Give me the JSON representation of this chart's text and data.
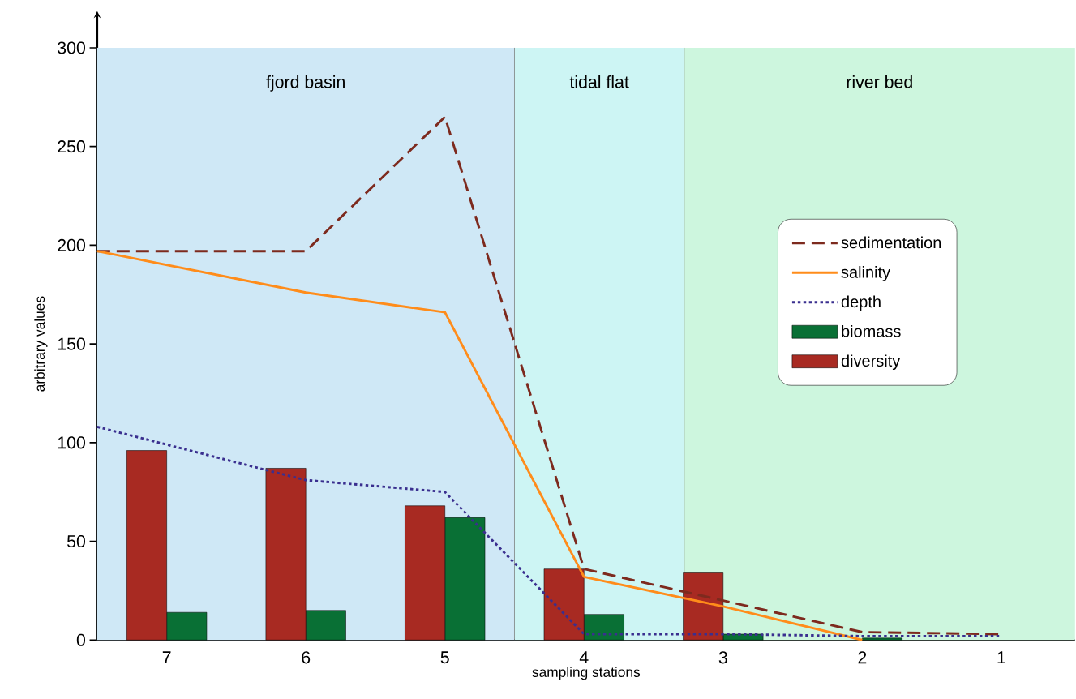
{
  "chart_data": {
    "type": "bar",
    "xlabel": "sampling stations",
    "ylabel": "arbitrary values",
    "x": [
      7,
      6,
      5,
      4,
      3,
      2
    ],
    "series": [
      {
        "name": "sedimentation",
        "type": "line",
        "line_style": "dashed",
        "color": "#7d2a1e",
        "x": [
          7.5,
          6,
          5,
          4,
          3,
          2,
          1
        ],
        "values": [
          197,
          197,
          265,
          36,
          20,
          4,
          3
        ]
      },
      {
        "name": "salinity",
        "type": "line",
        "line_style": "solid",
        "color": "#ff8c1a",
        "x": [
          7.5,
          6,
          5,
          4,
          3,
          2
        ],
        "values": [
          197,
          176,
          166,
          32,
          17,
          0
        ]
      },
      {
        "name": "depth",
        "type": "line",
        "line_style": "dotted",
        "color": "#3a2f8f",
        "x": [
          7.5,
          6,
          5,
          4,
          3,
          2,
          1
        ],
        "values": [
          108,
          81,
          75,
          3,
          3,
          2,
          2
        ]
      },
      {
        "name": "biomass",
        "color": "#097035",
        "values": [
          14,
          15,
          62,
          13,
          3,
          1
        ]
      },
      {
        "name": "diversity",
        "color": "#a82a22",
        "values": [
          96,
          87,
          68,
          36,
          34,
          null
        ]
      }
    ],
    "xlim": [
      7.5,
      0.47
    ],
    "xticks": [
      7,
      6,
      5,
      4,
      3,
      2,
      1
    ],
    "ylim": [
      0,
      300
    ],
    "yticks": [
      0,
      50,
      100,
      150,
      200,
      250,
      300
    ],
    "bands": [
      {
        "axis": "x",
        "from": 7.5,
        "to": 4.5,
        "label": "fjord basin",
        "color": "#cfe8f6"
      },
      {
        "axis": "x",
        "from": 4.5,
        "to": 3.28,
        "label": "tidal flat",
        "color": "#cdf5f4"
      },
      {
        "axis": "x",
        "from": 3.28,
        "to": 0.47,
        "label": "river bed",
        "color": "#cdf6de"
      }
    ],
    "ref_lines": [
      {
        "axis": "x",
        "value": 4.5,
        "color": "#666666"
      },
      {
        "axis": "x",
        "value": 3.28,
        "color": "#666666"
      }
    ],
    "legend": "right",
    "grid": false,
    "marker": "none"
  }
}
